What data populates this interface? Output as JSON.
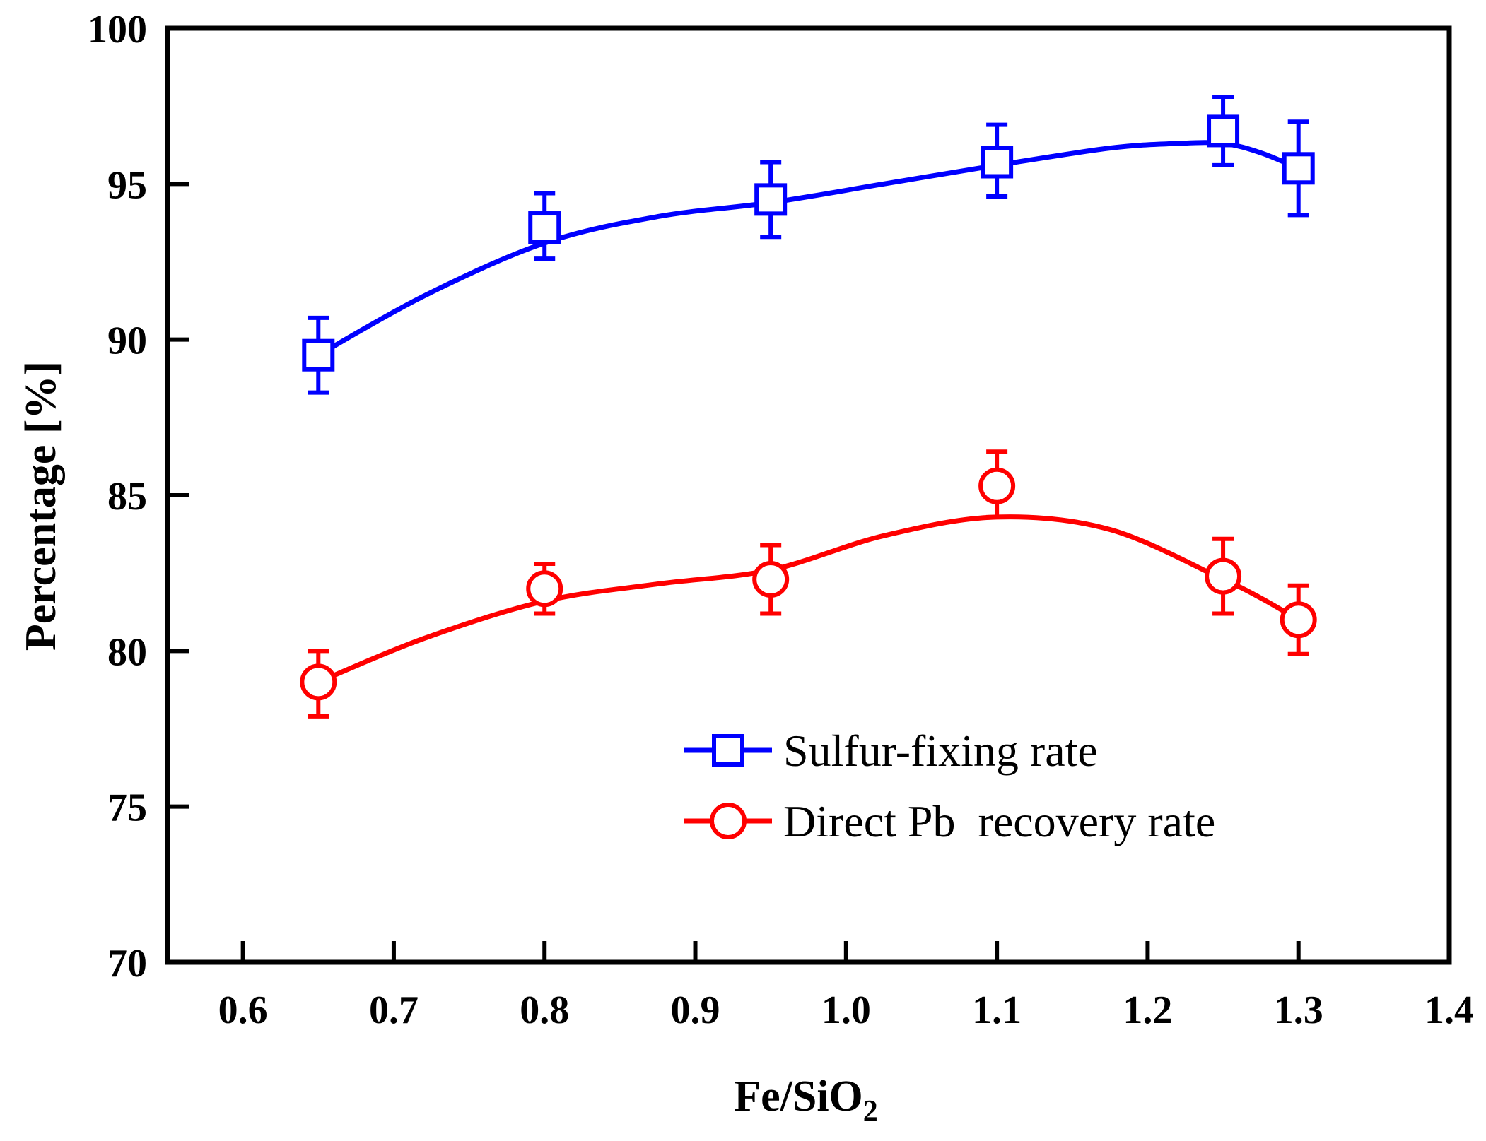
{
  "chart_data": {
    "type": "line",
    "title": "",
    "xlabel": "Fe/SiO",
    "xlabel_subscript": "2",
    "ylabel": "Percentage [%]",
    "xlim": [
      0.55,
      1.4
    ],
    "ylim": [
      70,
      100
    ],
    "x_ticks": [
      0.6,
      0.7,
      0.8,
      0.9,
      1.0,
      1.1,
      1.2,
      1.3,
      1.4
    ],
    "x_tick_labels": [
      "0.6",
      "0.7",
      "0.8",
      "0.9",
      "1.0",
      "1.1",
      "1.2",
      "1.3",
      "1.4"
    ],
    "y_ticks": [
      70,
      75,
      80,
      85,
      90,
      95,
      100
    ],
    "y_tick_labels": [
      "70",
      "75",
      "80",
      "85",
      "90",
      "95",
      "100"
    ],
    "grid": false,
    "legend_position": "lower-right",
    "series": [
      {
        "name": "Sulfur-fixing rate",
        "color": "#0000ff",
        "marker": "square",
        "x": [
          0.65,
          0.8,
          0.95,
          1.1,
          1.25,
          1.3
        ],
        "y": [
          89.5,
          93.6,
          94.5,
          95.7,
          96.7,
          95.5
        ],
        "err_low": [
          1.2,
          1.0,
          1.2,
          1.1,
          1.1,
          1.5
        ],
        "err_high": [
          1.2,
          1.1,
          1.2,
          1.2,
          1.1,
          1.5
        ],
        "curve": [
          [
            0.65,
            89.5
          ],
          [
            0.72,
            91.4
          ],
          [
            0.8,
            93.1
          ],
          [
            0.875,
            93.95
          ],
          [
            0.95,
            94.4
          ],
          [
            1.025,
            95.0
          ],
          [
            1.1,
            95.6
          ],
          [
            1.175,
            96.15
          ],
          [
            1.22,
            96.3
          ],
          [
            1.25,
            96.3
          ],
          [
            1.275,
            96.0
          ],
          [
            1.3,
            95.5
          ]
        ]
      },
      {
        "name": "Direct Pb  recovery rate",
        "color": "#ff0000",
        "marker": "circle",
        "x": [
          0.65,
          0.8,
          0.95,
          1.1,
          1.25,
          1.3
        ],
        "y": [
          79.0,
          82.0,
          82.3,
          85.3,
          82.4,
          81.0
        ],
        "err_low": [
          1.1,
          0.8,
          1.1,
          1.0,
          1.2,
          1.1
        ],
        "err_high": [
          1.0,
          0.8,
          1.1,
          1.1,
          1.2,
          1.1
        ],
        "curve": [
          [
            0.65,
            79.0
          ],
          [
            0.72,
            80.4
          ],
          [
            0.8,
            81.6
          ],
          [
            0.875,
            82.15
          ],
          [
            0.95,
            82.6
          ],
          [
            1.025,
            83.7
          ],
          [
            1.1,
            84.3
          ],
          [
            1.175,
            83.9
          ],
          [
            1.25,
            82.3
          ],
          [
            1.275,
            81.7
          ],
          [
            1.3,
            81.0
          ]
        ]
      }
    ]
  }
}
